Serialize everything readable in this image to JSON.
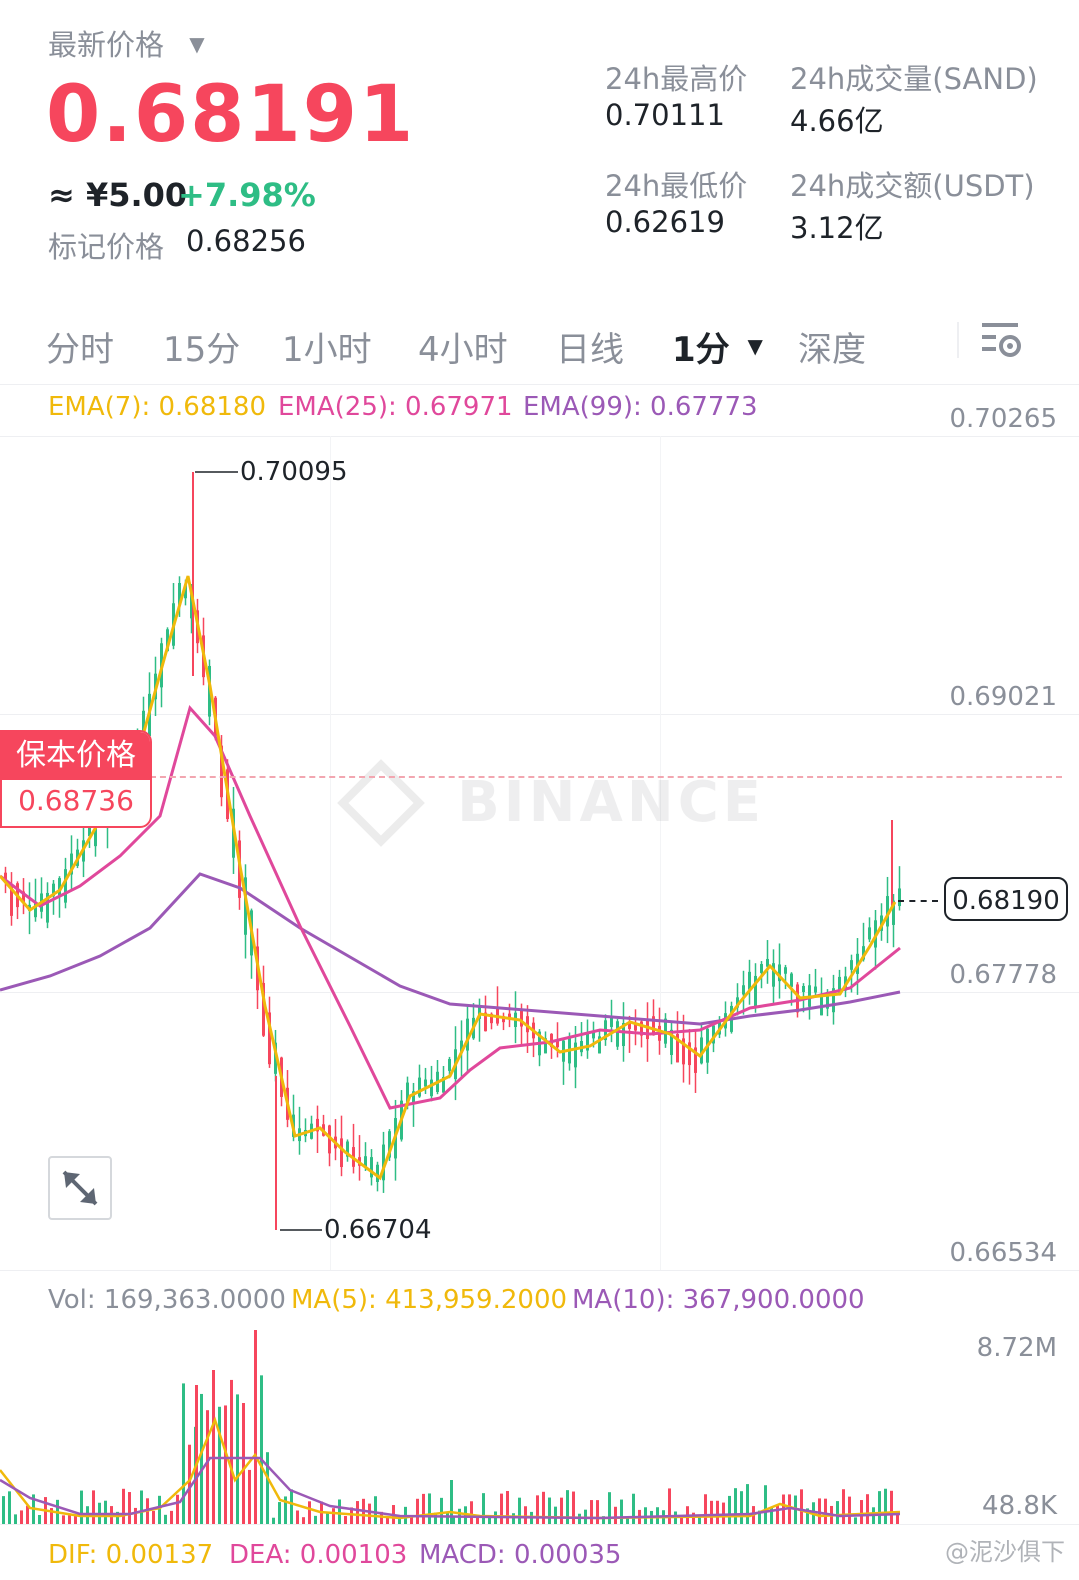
{
  "header": {
    "latest_price_label": "最新价格",
    "price": "0.68191",
    "cny_value": "≈ ¥5.00",
    "change_pct": "+7.98%",
    "mark_price_label": "标记价格",
    "mark_price": "0.68256",
    "colors": {
      "down": "#f6465d",
      "up": "#2ebd85"
    }
  },
  "stats": {
    "high_label": "24h最高价",
    "high": "0.70111",
    "low_label": "24h最低价",
    "low": "0.62619",
    "vol_label": "24h成交量(SAND)",
    "vol": "4.66亿",
    "turnover_label": "24h成交额(USDT)",
    "turnover": "3.12亿"
  },
  "tabs": [
    "分时",
    "15分",
    "1小时",
    "4小时",
    "日线",
    "1分",
    "深度"
  ],
  "active_tab": "1分",
  "settings_icon": "chart-settings-icon",
  "indicators": {
    "ema7": "EMA(7): 0.68180",
    "ema25": "EMA(25): 0.67971",
    "ema99": "EMA(99): 0.67773",
    "colors": {
      "ema7": "#f0b90b",
      "ema25": "#e0489b",
      "ema99": "#9b59b6"
    }
  },
  "price_axis": [
    "0.70265",
    "0.69021",
    "0.67778",
    "0.66534"
  ],
  "annotations": {
    "high": "0.70095",
    "low": "0.66704"
  },
  "breakeven": {
    "label": "保本价格",
    "value": "0.68736"
  },
  "current_price_tag": "0.68190",
  "watermark": "BINANCE",
  "expand_icon": "expand-icon",
  "volume": {
    "vol": "Vol: 169,363.0000",
    "ma5": "MA(5): 413,959.2000",
    "ma10": "MA(10): 367,900.0000",
    "axis": [
      "8.72M",
      "48.8K"
    ]
  },
  "macd": {
    "dif": "DIF: 0.00137",
    "dea": "DEA: 0.00103",
    "macd": "MACD: 0.00035"
  },
  "footer_watermark": "@泥沙俱下"
}
